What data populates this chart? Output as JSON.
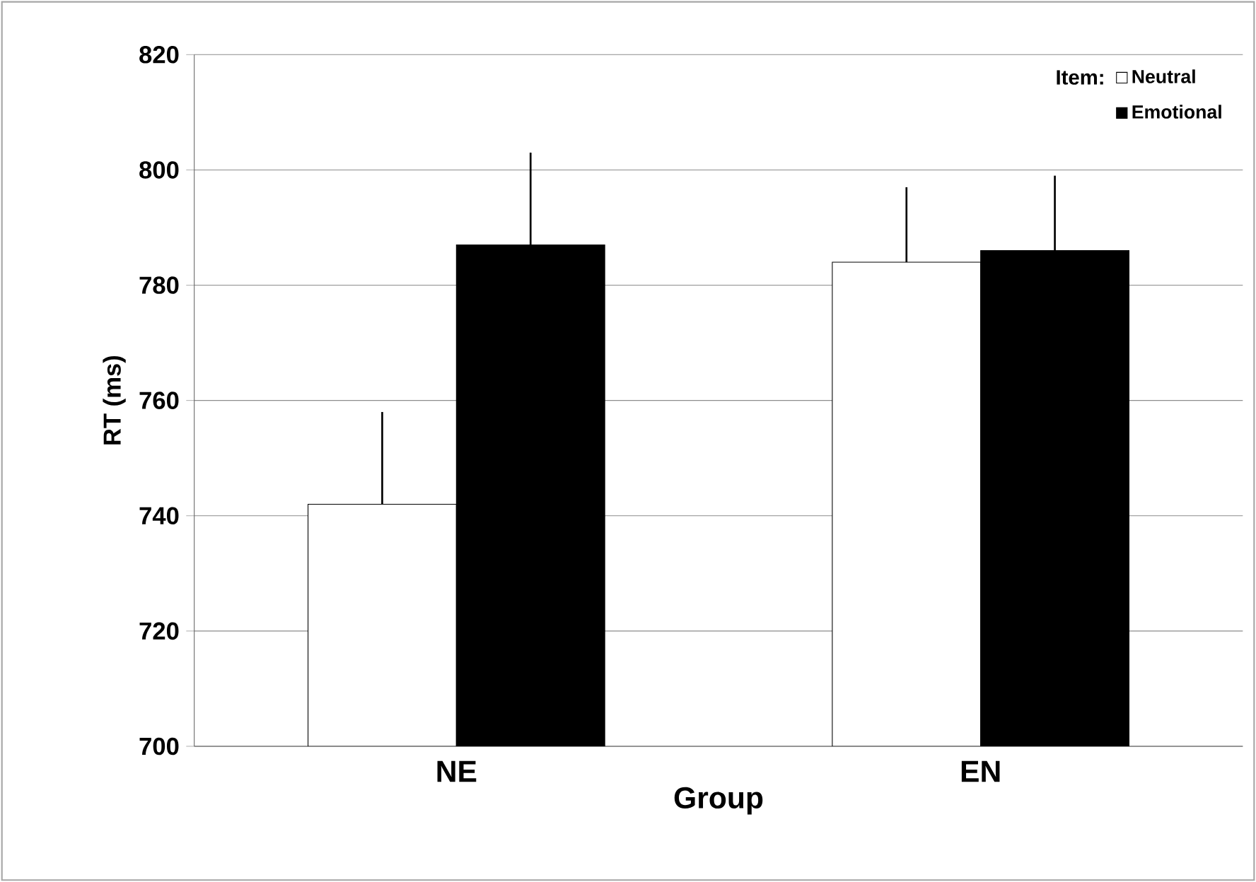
{
  "chart_data": {
    "type": "bar",
    "xlabel": "Group",
    "ylabel": "RT (ms)",
    "legend_title": "Item:",
    "categories": [
      "NE",
      "EN"
    ],
    "series": [
      {
        "name": "Neutral",
        "color": "#ffffff",
        "values": [
          742,
          784
        ],
        "errors": [
          [
            742,
            758
          ],
          [
            784,
            797
          ]
        ]
      },
      {
        "name": "Emotional",
        "color": "#000000",
        "values": [
          787,
          786
        ],
        "errors": [
          [
            787,
            803
          ],
          [
            786,
            799
          ]
        ]
      }
    ],
    "ylim": [
      700,
      820
    ],
    "yticks": [
      700,
      720,
      740,
      760,
      780,
      800,
      820
    ],
    "grid": "y",
    "legend": "top right"
  }
}
